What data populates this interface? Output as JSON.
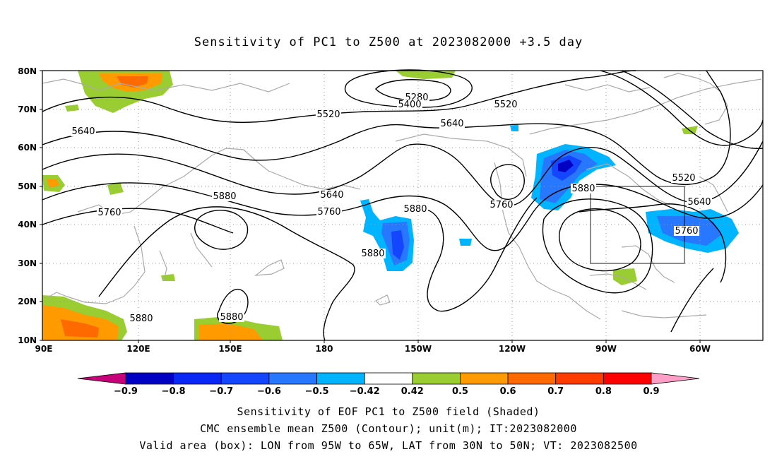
{
  "title": "Sensitivity of PC1 to Z500 at 2023082000 +3.5 day",
  "lat_labels": [
    "80N",
    "70N",
    "60N",
    "50N",
    "40N",
    "30N",
    "20N",
    "10N"
  ],
  "lon_labels": [
    "90E",
    "120E",
    "150E",
    "180",
    "150W",
    "120W",
    "90W",
    "60W"
  ],
  "contour_labels": [
    {
      "text": "5280"
    },
    {
      "text": "5400"
    },
    {
      "text": "5520"
    },
    {
      "text": "5520"
    },
    {
      "text": "5640"
    },
    {
      "text": "5640"
    },
    {
      "text": "5520"
    },
    {
      "text": "5640"
    },
    {
      "text": "5640"
    },
    {
      "text": "5760"
    },
    {
      "text": "5880"
    },
    {
      "text": "5760"
    },
    {
      "text": "5880"
    },
    {
      "text": "5760"
    },
    {
      "text": "5880"
    },
    {
      "text": "5760"
    },
    {
      "text": "5880"
    },
    {
      "text": "5880"
    },
    {
      "text": "5880"
    }
  ],
  "colorbar": {
    "colors": [
      "#c8007a",
      "#0000c4",
      "#0a28f5",
      "#1446ff",
      "#2878ff",
      "#00b4ff",
      "#ffffff",
      "#9acd32",
      "#ff9a00",
      "#ff6a00",
      "#ff3c00",
      "#ff0000",
      "#ff9fc8"
    ],
    "labels": [
      "-0.9",
      "-0.8",
      "-0.7",
      "-0.6",
      "-0.5",
      "-0.42",
      "0.42",
      "0.5",
      "0.6",
      "0.7",
      "0.8",
      "0.9"
    ]
  },
  "footer": {
    "line1": "Sensitivity of EOF PC1 to Z500 field (Shaded)",
    "line2": "CMC ensemble mean Z500 (Contour); unit(m); IT:2023082000",
    "line3": "Valid area (box): LON from 95W to 65W, LAT from 30N to 50N; VT: 2023082500"
  }
}
